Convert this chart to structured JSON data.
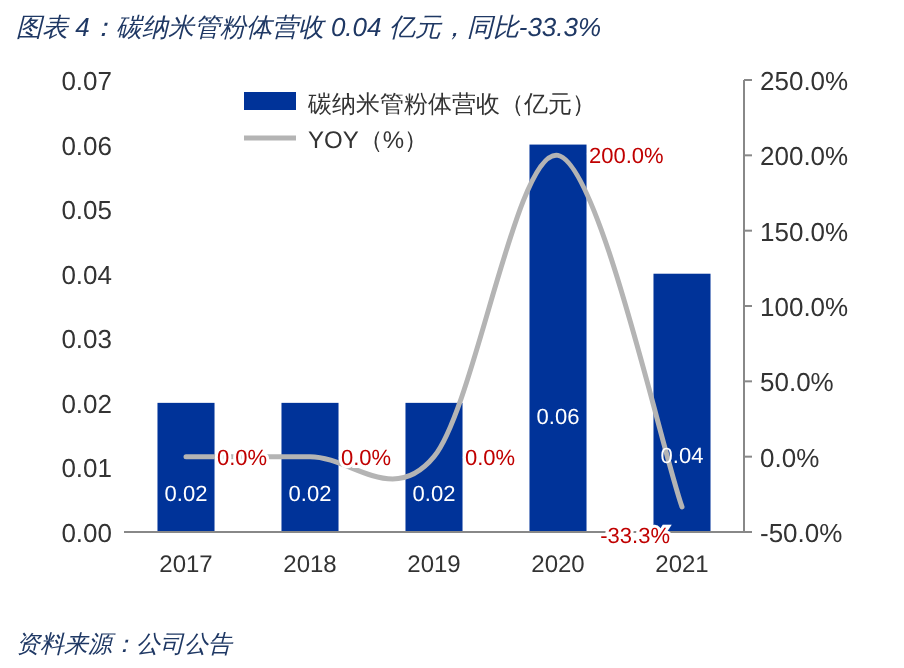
{
  "chart_data": {
    "type": "bar",
    "title": "图表 4：碳纳米管粉体营收 0.04 亿元，同比-33.3%",
    "categories": [
      "2017",
      "2018",
      "2019",
      "2020",
      "2021"
    ],
    "series": [
      {
        "name": "碳纳米管粉体营收（亿元）",
        "color": "#003399",
        "values": [
          0.02,
          0.02,
          0.02,
          0.06,
          0.04
        ],
        "value_labels": [
          "0.02",
          "0.02",
          "0.02",
          "0.06",
          "0.04"
        ]
      },
      {
        "name": "YOY（%）",
        "type": "line",
        "axis": "y2",
        "color": "#b4b4b4",
        "values": [
          0,
          0,
          0,
          200,
          -33.3
        ],
        "value_labels": [
          "0.0%",
          "0.0%",
          "0.0%",
          "200.0%",
          "-33.3%"
        ]
      }
    ],
    "ylim": [
      0,
      0.07
    ],
    "yticks": [
      {
        "value": 0,
        "label": "0.00"
      },
      {
        "value": 0.01,
        "label": "0.01"
      },
      {
        "value": 0.02,
        "label": "0.02"
      },
      {
        "value": 0.03,
        "label": "0.03"
      },
      {
        "value": 0.04,
        "label": "0.04"
      },
      {
        "value": 0.05,
        "label": "0.05"
      },
      {
        "value": 0.06,
        "label": "0.06"
      },
      {
        "value": 0.07,
        "label": "0.07"
      }
    ],
    "y2lim": [
      -50,
      250
    ],
    "y2ticks": [
      {
        "value": -50,
        "label": "-50.0%"
      },
      {
        "value": 0,
        "label": "0.0%"
      },
      {
        "value": 50,
        "label": "50.0%"
      },
      {
        "value": 100,
        "label": "100.0%"
      },
      {
        "value": 150,
        "label": "150.0%"
      },
      {
        "value": 200,
        "label": "200.0%"
      },
      {
        "value": 250,
        "label": "250.0%"
      }
    ],
    "legend": "top",
    "grid": false,
    "annotations": [
      "资料来源：公司公告"
    ]
  }
}
